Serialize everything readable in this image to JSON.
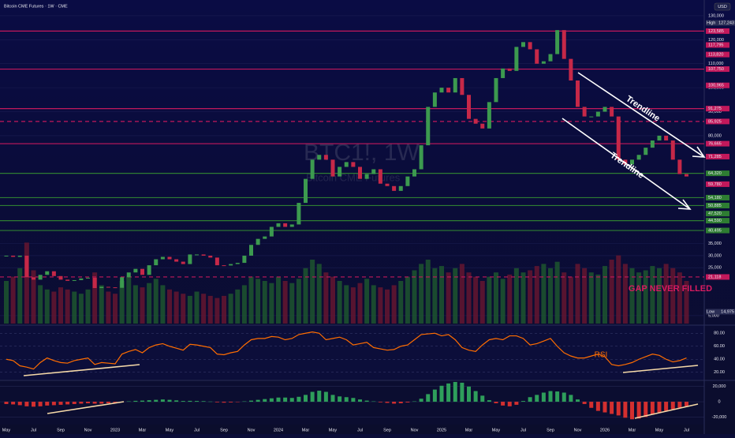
{
  "header": {
    "title": "Bitcoin CME Futures · 1W · CME",
    "currency": "USD",
    "watermark": "BTC1!, 1W",
    "watermark_sub": "Bitcoin CME Futures"
  },
  "chart_data": {
    "type": "candlestick",
    "categories": [
      "May",
      null,
      null,
      null,
      "Jul",
      null,
      null,
      null,
      "Sep",
      null,
      null,
      null,
      "Nov",
      null,
      null,
      null,
      "2023",
      null,
      null,
      null,
      "Mar",
      null,
      null,
      null,
      "May",
      null,
      null,
      null,
      "Jul",
      null,
      null,
      null,
      "Sep",
      null,
      null,
      null,
      "Nov",
      null,
      null,
      null,
      "2024",
      null,
      null,
      null,
      "Mar",
      null,
      null,
      null,
      "May",
      null,
      null,
      null,
      "Jul",
      null,
      null,
      null,
      "Sep",
      null,
      null,
      null,
      "Nov",
      null,
      null,
      null,
      "2025",
      null,
      null,
      null,
      "Mar",
      null,
      null,
      null,
      "May",
      null,
      null,
      null,
      "Jul",
      null,
      null,
      null,
      "Sep",
      null,
      null,
      null,
      "Nov",
      null,
      null,
      null,
      "2026",
      null,
      null,
      null,
      "Mar",
      null,
      null,
      null,
      "May",
      null,
      null,
      null,
      "Jul"
    ],
    "close": [
      30000,
      29500,
      30000,
      21000,
      20000,
      22000,
      23500,
      21500,
      20000,
      19500,
      19800,
      20500,
      20800,
      16500,
      17000,
      16800,
      16600,
      21000,
      23000,
      24500,
      22000,
      26000,
      28500,
      29500,
      28500,
      27500,
      26500,
      30500,
      30500,
      30000,
      29200,
      26000,
      25900,
      26500,
      27000,
      30000,
      34500,
      37000,
      38000,
      42000,
      43500,
      42000,
      43000,
      52000,
      62000,
      70000,
      72000,
      70000,
      63000,
      67000,
      69000,
      67000,
      62000,
      64000,
      66000,
      60000,
      59000,
      57000,
      59000,
      63000,
      66000,
      76000,
      92000,
      98000,
      100000,
      98000,
      104000,
      97000,
      87000,
      85000,
      83000,
      94000,
      104000,
      108000,
      107000,
      117000,
      119000,
      116000,
      110000,
      111000,
      114000,
      124000,
      112000,
      103000,
      92000,
      88000,
      88000,
      90000,
      92000,
      88000,
      70000,
      68000,
      70000,
      72000,
      75000,
      78000,
      80000,
      78000,
      70000,
      64000,
      63000
    ],
    "up_color": "#3c9a4f",
    "down_color": "#c62848",
    "ylim": [
      1700,
      134900
    ],
    "yticks": [
      {
        "value": 130000,
        "label": "130,000"
      },
      {
        "value": 120000,
        "label": "120,000"
      },
      {
        "value": 110000,
        "label": "110,000"
      },
      {
        "value": 100000,
        "label": "100,000"
      },
      {
        "value": 90000,
        "label": "90,000"
      },
      {
        "value": 80000,
        "label": "80,000"
      },
      {
        "value": 35000,
        "label": "35,000"
      },
      {
        "value": 30000,
        "label": "30,000"
      },
      {
        "value": 25000,
        "label": "25,000"
      },
      {
        "value": 5000,
        "label": "5,000"
      }
    ],
    "high": {
      "name": "High",
      "value": 127243,
      "label": "127,243"
    },
    "low": {
      "name": "Low",
      "value": 14975,
      "label": "14,975"
    },
    "levels": [
      {
        "value": 123585,
        "label": "123,585",
        "color": "#c2185b",
        "style": "solid"
      },
      {
        "value": 117795,
        "label": "117,795",
        "color": "#c2185b",
        "style": "none"
      },
      {
        "value": 113820,
        "label": "113,820",
        "color": "#c2185b",
        "style": "none"
      },
      {
        "value": 107750,
        "label": "107,750",
        "color": "#c2185b",
        "style": "solid"
      },
      {
        "value": 100965,
        "label": "100,965",
        "color": "#c2185b",
        "style": "none"
      },
      {
        "value": 91275,
        "label": "91,275",
        "color": "#c2185b",
        "style": "solid"
      },
      {
        "value": 85925,
        "label": "85,925",
        "color": "#c2185b",
        "style": "dashed"
      },
      {
        "value": 76665,
        "label": "76,665",
        "color": "#c2185b",
        "style": "solid"
      },
      {
        "value": 71285,
        "label": "71,285",
        "color": "#c2185b",
        "style": "none"
      },
      {
        "value": 64320,
        "label": "64,320",
        "color": "#2e7d32",
        "style": "solid"
      },
      {
        "value": 59780,
        "label": "59,780",
        "color": "#c2185b",
        "style": "none"
      },
      {
        "value": 54180,
        "label": "54,180",
        "color": "#2e7d32",
        "style": "solid"
      },
      {
        "value": 50885,
        "label": "50,885",
        "color": "#2e7d32",
        "style": "solid"
      },
      {
        "value": 47520,
        "label": "47,520",
        "color": "#2e7d32",
        "style": "none"
      },
      {
        "value": 44590,
        "label": "44,590",
        "color": "#2e7d32",
        "style": "solid"
      },
      {
        "value": 40495,
        "label": "40,495",
        "color": "#2e7d32",
        "style": "solid"
      },
      {
        "value": 21118,
        "label": "21,118",
        "color": "#c2185b",
        "style": "dashed"
      }
    ],
    "volume": [
      20,
      22,
      26,
      38,
      25,
      18,
      16,
      15,
      17,
      16,
      15,
      14,
      16,
      24,
      18,
      15,
      14,
      20,
      22,
      18,
      17,
      19,
      21,
      18,
      16,
      15,
      14,
      13,
      15,
      14,
      13,
      12,
      13,
      14,
      16,
      18,
      22,
      21,
      20,
      19,
      22,
      20,
      19,
      21,
      26,
      30,
      28,
      24,
      22,
      20,
      18,
      17,
      19,
      21,
      18,
      17,
      16,
      18,
      20,
      22,
      25,
      28,
      30,
      26,
      27,
      24,
      26,
      28,
      24,
      22,
      20,
      22,
      24,
      21,
      23,
      26,
      24,
      25,
      27,
      28,
      26,
      29,
      24,
      22,
      28,
      26,
      24,
      23,
      27,
      30,
      32,
      28,
      26,
      24,
      25,
      27,
      26,
      28,
      26,
      24,
      20
    ],
    "volume_ylim": [
      0,
      150
    ],
    "rsi": {
      "values": [
        40,
        38,
        30,
        28,
        25,
        35,
        42,
        38,
        35,
        34,
        38,
        40,
        42,
        32,
        35,
        34,
        33,
        48,
        52,
        55,
        50,
        58,
        62,
        64,
        60,
        57,
        54,
        63,
        62,
        60,
        58,
        48,
        47,
        50,
        52,
        62,
        70,
        72,
        72,
        75,
        74,
        70,
        72,
        78,
        80,
        82,
        80,
        70,
        72,
        74,
        70,
        62,
        64,
        66,
        58,
        56,
        54,
        55,
        60,
        62,
        70,
        78,
        79,
        80,
        76,
        78,
        70,
        58,
        54,
        52,
        62,
        70,
        72,
        70,
        76,
        76,
        72,
        62,
        64,
        68,
        72,
        60,
        50,
        45,
        42,
        42,
        45,
        48,
        44,
        32,
        30,
        32,
        35,
        40,
        44,
        48,
        46,
        40,
        36,
        38,
        42
      ],
      "color": "#ff6d00",
      "ylim": [
        10,
        90
      ],
      "yticks": [
        {
          "value": 80,
          "label": "80.00"
        },
        {
          "value": 60,
          "label": "60.00"
        },
        {
          "value": 40,
          "label": "40.00"
        },
        {
          "value": 20,
          "label": "20.00"
        }
      ]
    },
    "macd": {
      "values": [
        -3000,
        -3500,
        -4500,
        -6000,
        -6500,
        -6000,
        -5000,
        -4500,
        -4000,
        -3500,
        -3000,
        -2500,
        -2000,
        -2500,
        -2500,
        -2000,
        -1500,
        -500,
        500,
        1200,
        1500,
        2000,
        2500,
        3000,
        2500,
        1800,
        1000,
        1200,
        1000,
        800,
        300,
        -800,
        -1200,
        -900,
        -300,
        500,
        1500,
        2500,
        3500,
        4500,
        5500,
        5500,
        5000,
        6500,
        9000,
        13000,
        14500,
        13000,
        9000,
        7000,
        6000,
        5000,
        3000,
        1500,
        500,
        -800,
        -1500,
        -2500,
        -2000,
        -1000,
        500,
        4000,
        10000,
        16000,
        21000,
        24000,
        26000,
        25000,
        20000,
        14000,
        8000,
        2000,
        -2000,
        -5000,
        -6000,
        -4000,
        1000,
        6000,
        9000,
        12000,
        14000,
        13500,
        12000,
        9000,
        3000,
        -3000,
        -8000,
        -12000,
        -14000,
        -16000,
        -18000,
        -21000,
        -23000,
        -22000,
        -20000,
        -17000,
        -14000,
        -12000,
        -10000,
        -8000,
        -6000
      ],
      "up_color": "#2e9e5b",
      "down_color": "#d32f2f",
      "ylim": [
        -30000,
        27000
      ],
      "yticks": [
        {
          "value": 20000,
          "label": "20,000"
        },
        0,
        {
          "value": -20000,
          "label": "-20,000"
        }
      ]
    },
    "annotations": [
      "Trendline",
      "Trendline",
      "GAP NEVER FILLED",
      "RSI"
    ]
  }
}
